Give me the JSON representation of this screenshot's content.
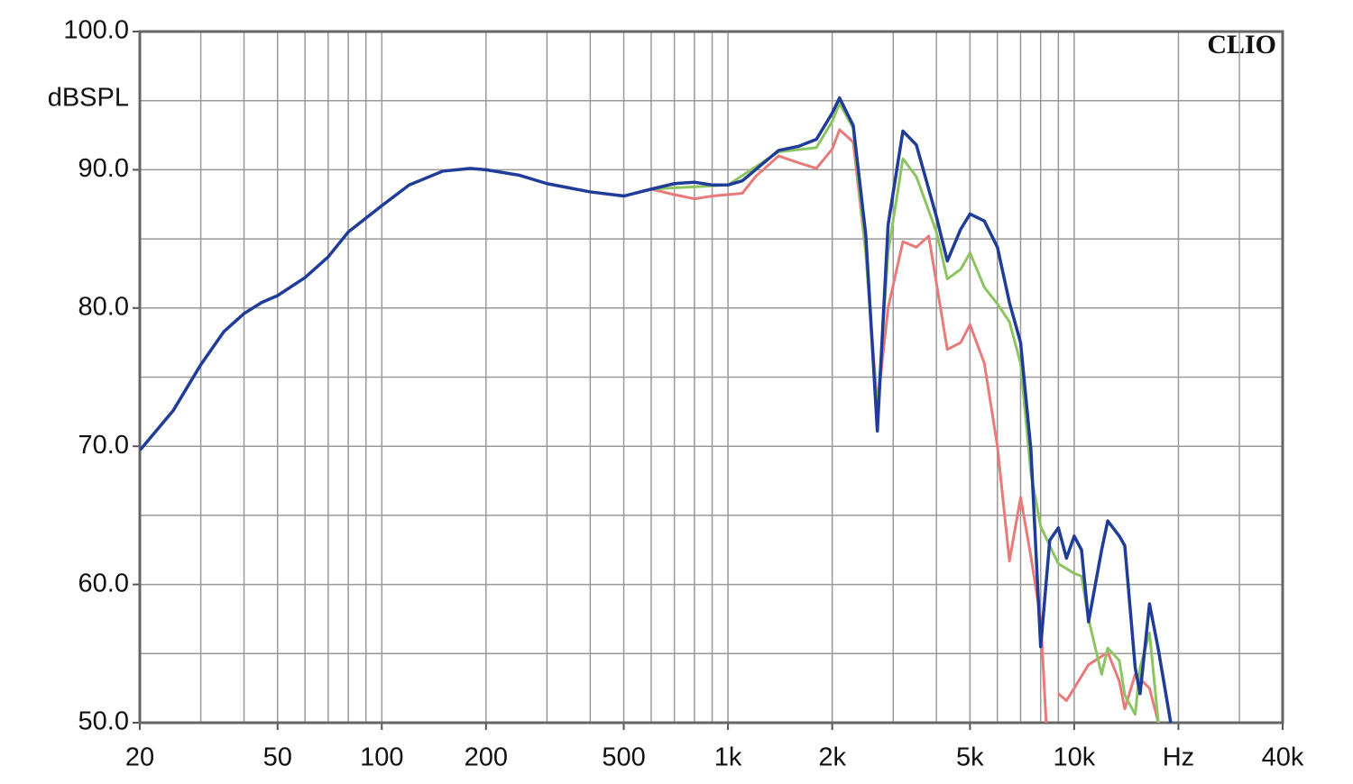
{
  "chart_data": {
    "type": "line",
    "y_label": "dBSPL",
    "annotation": "CLIO",
    "log_x": true,
    "grid": true,
    "xlim": [
      20,
      40000
    ],
    "ylim": [
      50,
      100
    ],
    "xticks": [
      20,
      50,
      100,
      200,
      500,
      {
        "value": 1000,
        "label": "1k"
      },
      {
        "value": 2000,
        "label": "2k"
      },
      {
        "value": 5000,
        "label": "5k"
      },
      {
        "value": 10000,
        "label": "10k"
      },
      {
        "value": 20000,
        "label": "Hz"
      },
      {
        "value": 40000,
        "label": "40k"
      }
    ],
    "xgrid": [
      30,
      40,
      60,
      70,
      80,
      90,
      300,
      400,
      600,
      700,
      800,
      900,
      3000,
      4000,
      6000,
      7000,
      8000,
      9000,
      30000
    ],
    "yticks": [
      {
        "value": 50,
        "label": "50.0"
      },
      {
        "value": 60,
        "label": "60.0"
      },
      {
        "value": 70,
        "label": "70.0"
      },
      {
        "value": 80,
        "label": "80.0"
      },
      {
        "value": 90,
        "label": "90.0"
      },
      {
        "value": 100,
        "label": "100.0"
      }
    ],
    "ygrid": [
      55,
      65,
      75,
      85,
      95
    ],
    "series": [
      {
        "color": "#1f3c98",
        "x": [
          20,
          25,
          30,
          35,
          40,
          45,
          50,
          60,
          70,
          80,
          100,
          120,
          150,
          180,
          200,
          250,
          300,
          400,
          500,
          600,
          700,
          800,
          900,
          1000,
          1100,
          1200,
          1400,
          1600,
          1800,
          2000,
          2100,
          2300,
          2500,
          2700,
          2900,
          3200,
          3500,
          4000,
          4300,
          4700,
          5000,
          5500,
          6000,
          6500,
          7000,
          7500,
          8000,
          8500,
          9000,
          9500,
          10000,
          10500,
          11000,
          12000,
          12500,
          13500,
          14000,
          15000,
          15500,
          16500,
          17500,
          19000
        ],
        "values": [
          69.7,
          72.6,
          75.9,
          78.3,
          79.6,
          80.4,
          80.9,
          82.2,
          83.7,
          85.5,
          87.4,
          88.9,
          89.9,
          90.1,
          90.0,
          89.6,
          89.0,
          88.4,
          88.1,
          88.6,
          89.0,
          89.1,
          88.9,
          88.9,
          89.2,
          90.0,
          91.4,
          91.7,
          92.2,
          94.1,
          95.2,
          93.2,
          85.3,
          71.1,
          86.0,
          92.8,
          91.8,
          86.6,
          83.4,
          85.7,
          86.8,
          86.3,
          84.4,
          80.4,
          77.5,
          69.7,
          55.5,
          63.2,
          64.1,
          61.9,
          63.5,
          62.5,
          57.3,
          62.5,
          64.6,
          63.5,
          62.8,
          54.0,
          52.1,
          58.6,
          55.3,
          50.0
        ]
      },
      {
        "color": "#8dc462",
        "x": [
          600,
          1000,
          1400,
          1800,
          2000,
          2100,
          2300,
          2500,
          2700,
          2900,
          3200,
          3500,
          4000,
          4300,
          4700,
          5000,
          5500,
          6000,
          6500,
          7000,
          7500,
          8000,
          8500,
          9000,
          10000,
          10500,
          11000,
          12000,
          12500,
          13500,
          14000,
          15000,
          15500,
          16500,
          17500
        ],
        "values": [
          88.6,
          88.9,
          91.3,
          91.6,
          93.5,
          94.8,
          93.0,
          84.0,
          72.5,
          84.0,
          90.8,
          89.5,
          85.5,
          82.1,
          82.8,
          84.0,
          81.5,
          80.3,
          79.0,
          76.0,
          68.0,
          64.2,
          62.8,
          61.5,
          60.8,
          60.6,
          57.5,
          53.5,
          55.4,
          54.5,
          52.0,
          50.6,
          54.0,
          56.5,
          50.0
        ]
      },
      {
        "color": "#e87a7a",
        "x": [
          600,
          700,
          800,
          900,
          1000,
          1100,
          1200,
          1400,
          1600,
          1800,
          2000,
          2100,
          2300,
          2500,
          2700,
          2900,
          3200,
          3500,
          3800,
          4300,
          4700,
          5000,
          5500,
          6000,
          6500,
          7000,
          7500,
          8000,
          8300,
          8600,
          9000,
          9500,
          10000,
          11000,
          12000,
          12500,
          13500,
          14000,
          15000,
          16500,
          17500
        ],
        "values": [
          88.6,
          88.2,
          87.9,
          88.1,
          88.2,
          88.3,
          89.5,
          91.0,
          90.5,
          90.1,
          91.5,
          92.9,
          92.0,
          84.0,
          72.9,
          80.0,
          84.8,
          84.4,
          85.2,
          77.0,
          77.5,
          78.8,
          76.0,
          70.0,
          61.7,
          66.3,
          62.0,
          57.5,
          50.0,
          null,
          52.1,
          51.6,
          52.5,
          54.2,
          54.8,
          55.1,
          53.0,
          51.0,
          53.5,
          52.5,
          50.0
        ]
      }
    ]
  }
}
